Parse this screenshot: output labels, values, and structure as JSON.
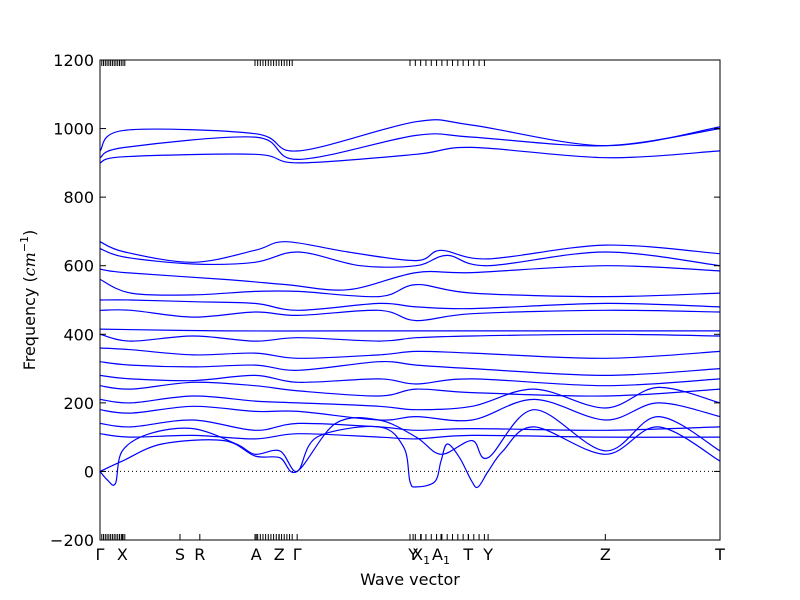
{
  "chart_data": {
    "type": "line",
    "xlabel": "Wave vector",
    "ylabel": "Frequency ($cm^{-1}$)",
    "ylabel_parts": {
      "prefix": "Frequency (",
      "unit_base": "cm",
      "unit_exp": "−1",
      "suffix": ")"
    },
    "ylim": [
      -200,
      1200
    ],
    "yticks": [
      -200,
      0,
      200,
      400,
      600,
      800,
      1000,
      1200
    ],
    "xlim": [
      0,
      1
    ],
    "grid": false,
    "legend": "none",
    "line_color": "#0000ff",
    "zero_line": {
      "y": 0,
      "style": "dotted",
      "color": "#000000"
    },
    "high_symmetry_points": [
      {
        "label": "Γ",
        "x": 0.0
      },
      {
        "label": "X",
        "x": 0.036
      },
      {
        "label": "S",
        "x": 0.129
      },
      {
        "label": "R",
        "x": 0.161
      },
      {
        "label": "A",
        "x": 0.252
      },
      {
        "label": "Z",
        "x": 0.289
      },
      {
        "label": "Γ",
        "x": 0.318
      },
      {
        "label": "Y",
        "x": 0.505
      },
      {
        "label": "X_1",
        "x": 0.518
      },
      {
        "label": "A_1",
        "x": 0.55
      },
      {
        "label": "T",
        "x": 0.594
      },
      {
        "label": "Y",
        "x": 0.626
      },
      {
        "label": "Z",
        "x": 0.815
      },
      {
        "label": "T",
        "x": 1.0
      }
    ],
    "series": [
      {
        "values": [
          {
            "x": 0,
            "y": 935
          },
          {
            "x": 0.04,
            "y": 995
          },
          {
            "x": 0.25,
            "y": 985
          },
          {
            "x": 0.32,
            "y": 935
          },
          {
            "x": 0.51,
            "y": 1020
          },
          {
            "x": 0.6,
            "y": 1010
          },
          {
            "x": 0.815,
            "y": 950
          },
          {
            "x": 1,
            "y": 1005
          }
        ]
      },
      {
        "values": [
          {
            "x": 0,
            "y": 915
          },
          {
            "x": 0.04,
            "y": 945
          },
          {
            "x": 0.25,
            "y": 975
          },
          {
            "x": 0.32,
            "y": 910
          },
          {
            "x": 0.51,
            "y": 980
          },
          {
            "x": 0.6,
            "y": 975
          },
          {
            "x": 0.815,
            "y": 950
          },
          {
            "x": 1,
            "y": 1000
          }
        ]
      },
      {
        "values": [
          {
            "x": 0,
            "y": 900
          },
          {
            "x": 0.04,
            "y": 918
          },
          {
            "x": 0.25,
            "y": 925
          },
          {
            "x": 0.32,
            "y": 900
          },
          {
            "x": 0.51,
            "y": 925
          },
          {
            "x": 0.6,
            "y": 945
          },
          {
            "x": 0.815,
            "y": 915
          },
          {
            "x": 1,
            "y": 935
          }
        ]
      },
      {
        "values": [
          {
            "x": 0,
            "y": 670
          },
          {
            "x": 0.04,
            "y": 640
          },
          {
            "x": 0.15,
            "y": 610
          },
          {
            "x": 0.25,
            "y": 645
          },
          {
            "x": 0.3,
            "y": 670
          },
          {
            "x": 0.4,
            "y": 640
          },
          {
            "x": 0.51,
            "y": 615
          },
          {
            "x": 0.55,
            "y": 645
          },
          {
            "x": 0.626,
            "y": 620
          },
          {
            "x": 0.815,
            "y": 660
          },
          {
            "x": 1,
            "y": 635
          }
        ]
      },
      {
        "values": [
          {
            "x": 0,
            "y": 650
          },
          {
            "x": 0.04,
            "y": 625
          },
          {
            "x": 0.15,
            "y": 605
          },
          {
            "x": 0.25,
            "y": 610
          },
          {
            "x": 0.32,
            "y": 640
          },
          {
            "x": 0.42,
            "y": 600
          },
          {
            "x": 0.51,
            "y": 600
          },
          {
            "x": 0.56,
            "y": 630
          },
          {
            "x": 0.626,
            "y": 600
          },
          {
            "x": 0.815,
            "y": 640
          },
          {
            "x": 1,
            "y": 600
          }
        ]
      },
      {
        "values": [
          {
            "x": 0,
            "y": 590
          },
          {
            "x": 0.04,
            "y": 580
          },
          {
            "x": 0.2,
            "y": 560
          },
          {
            "x": 0.3,
            "y": 545
          },
          {
            "x": 0.4,
            "y": 530
          },
          {
            "x": 0.51,
            "y": 580
          },
          {
            "x": 0.6,
            "y": 580
          },
          {
            "x": 0.815,
            "y": 600
          },
          {
            "x": 1,
            "y": 585
          }
        ]
      },
      {
        "values": [
          {
            "x": 0,
            "y": 560
          },
          {
            "x": 0.05,
            "y": 520
          },
          {
            "x": 0.15,
            "y": 515
          },
          {
            "x": 0.25,
            "y": 525
          },
          {
            "x": 0.32,
            "y": 525
          },
          {
            "x": 0.45,
            "y": 510
          },
          {
            "x": 0.51,
            "y": 545
          },
          {
            "x": 0.6,
            "y": 520
          },
          {
            "x": 0.815,
            "y": 510
          },
          {
            "x": 1,
            "y": 520
          }
        ]
      },
      {
        "values": [
          {
            "x": 0,
            "y": 500
          },
          {
            "x": 0.05,
            "y": 500
          },
          {
            "x": 0.15,
            "y": 495
          },
          {
            "x": 0.25,
            "y": 490
          },
          {
            "x": 0.32,
            "y": 470
          },
          {
            "x": 0.45,
            "y": 490
          },
          {
            "x": 0.51,
            "y": 480
          },
          {
            "x": 0.6,
            "y": 475
          },
          {
            "x": 0.815,
            "y": 490
          },
          {
            "x": 1,
            "y": 480
          }
        ]
      },
      {
        "values": [
          {
            "x": 0,
            "y": 470
          },
          {
            "x": 0.05,
            "y": 470
          },
          {
            "x": 0.15,
            "y": 450
          },
          {
            "x": 0.25,
            "y": 465
          },
          {
            "x": 0.32,
            "y": 455
          },
          {
            "x": 0.45,
            "y": 470
          },
          {
            "x": 0.51,
            "y": 440
          },
          {
            "x": 0.6,
            "y": 460
          },
          {
            "x": 0.815,
            "y": 470
          },
          {
            "x": 1,
            "y": 465
          }
        ]
      },
      {
        "values": [
          {
            "x": 0,
            "y": 415
          },
          {
            "x": 0.2,
            "y": 410
          },
          {
            "x": 0.4,
            "y": 410
          },
          {
            "x": 0.6,
            "y": 410
          },
          {
            "x": 0.815,
            "y": 410
          },
          {
            "x": 1,
            "y": 410
          }
        ]
      },
      {
        "values": [
          {
            "x": 0,
            "y": 400
          },
          {
            "x": 0.05,
            "y": 380
          },
          {
            "x": 0.15,
            "y": 395
          },
          {
            "x": 0.25,
            "y": 380
          },
          {
            "x": 0.32,
            "y": 390
          },
          {
            "x": 0.45,
            "y": 380
          },
          {
            "x": 0.51,
            "y": 390
          },
          {
            "x": 0.6,
            "y": 395
          },
          {
            "x": 0.815,
            "y": 400
          },
          {
            "x": 1,
            "y": 395
          }
        ]
      },
      {
        "values": [
          {
            "x": 0,
            "y": 360
          },
          {
            "x": 0.05,
            "y": 355
          },
          {
            "x": 0.15,
            "y": 340
          },
          {
            "x": 0.25,
            "y": 345
          },
          {
            "x": 0.32,
            "y": 330
          },
          {
            "x": 0.45,
            "y": 340
          },
          {
            "x": 0.51,
            "y": 350
          },
          {
            "x": 0.6,
            "y": 345
          },
          {
            "x": 0.815,
            "y": 330
          },
          {
            "x": 1,
            "y": 350
          }
        ]
      },
      {
        "values": [
          {
            "x": 0,
            "y": 320
          },
          {
            "x": 0.05,
            "y": 310
          },
          {
            "x": 0.15,
            "y": 305
          },
          {
            "x": 0.25,
            "y": 310
          },
          {
            "x": 0.32,
            "y": 295
          },
          {
            "x": 0.45,
            "y": 320
          },
          {
            "x": 0.51,
            "y": 310
          },
          {
            "x": 0.6,
            "y": 300
          },
          {
            "x": 0.815,
            "y": 280
          },
          {
            "x": 1,
            "y": 300
          }
        ]
      },
      {
        "values": [
          {
            "x": 0,
            "y": 280
          },
          {
            "x": 0.05,
            "y": 270
          },
          {
            "x": 0.15,
            "y": 265
          },
          {
            "x": 0.25,
            "y": 280
          },
          {
            "x": 0.32,
            "y": 260
          },
          {
            "x": 0.45,
            "y": 270
          },
          {
            "x": 0.51,
            "y": 255
          },
          {
            "x": 0.6,
            "y": 270
          },
          {
            "x": 0.815,
            "y": 250
          },
          {
            "x": 1,
            "y": 270
          }
        ]
      },
      {
        "values": [
          {
            "x": 0,
            "y": 250
          },
          {
            "x": 0.05,
            "y": 240
          },
          {
            "x": 0.15,
            "y": 260
          },
          {
            "x": 0.25,
            "y": 250
          },
          {
            "x": 0.32,
            "y": 235
          },
          {
            "x": 0.45,
            "y": 220
          },
          {
            "x": 0.51,
            "y": 240
          },
          {
            "x": 0.6,
            "y": 230
          },
          {
            "x": 0.815,
            "y": 220
          },
          {
            "x": 1,
            "y": 240
          }
        ]
      },
      {
        "values": [
          {
            "x": 0,
            "y": 210
          },
          {
            "x": 0.05,
            "y": 200
          },
          {
            "x": 0.15,
            "y": 220
          },
          {
            "x": 0.25,
            "y": 205
          },
          {
            "x": 0.32,
            "y": 200
          },
          {
            "x": 0.45,
            "y": 190
          },
          {
            "x": 0.51,
            "y": 180
          },
          {
            "x": 0.6,
            "y": 190
          },
          {
            "x": 0.7,
            "y": 240
          },
          {
            "x": 0.815,
            "y": 185
          },
          {
            "x": 0.9,
            "y": 245
          },
          {
            "x": 1,
            "y": 200
          }
        ]
      },
      {
        "values": [
          {
            "x": 0,
            "y": 180
          },
          {
            "x": 0.05,
            "y": 170
          },
          {
            "x": 0.15,
            "y": 190
          },
          {
            "x": 0.25,
            "y": 175
          },
          {
            "x": 0.32,
            "y": 175
          },
          {
            "x": 0.45,
            "y": 150
          },
          {
            "x": 0.51,
            "y": 160
          },
          {
            "x": 0.6,
            "y": 150
          },
          {
            "x": 0.7,
            "y": 210
          },
          {
            "x": 0.815,
            "y": 150
          },
          {
            "x": 0.9,
            "y": 200
          },
          {
            "x": 1,
            "y": 160
          }
        ]
      },
      {
        "values": [
          {
            "x": 0,
            "y": 140
          },
          {
            "x": 0.05,
            "y": 130
          },
          {
            "x": 0.15,
            "y": 150
          },
          {
            "x": 0.25,
            "y": 120
          },
          {
            "x": 0.32,
            "y": 140
          },
          {
            "x": 0.45,
            "y": 130
          },
          {
            "x": 0.51,
            "y": 120
          },
          {
            "x": 0.6,
            "y": 125
          },
          {
            "x": 0.815,
            "y": 120
          },
          {
            "x": 1,
            "y": 130
          }
        ]
      },
      {
        "values": [
          {
            "x": 0,
            "y": 110
          },
          {
            "x": 0.05,
            "y": 100
          },
          {
            "x": 0.15,
            "y": 105
          },
          {
            "x": 0.25,
            "y": 95
          },
          {
            "x": 0.32,
            "y": 110
          },
          {
            "x": 0.45,
            "y": 100
          },
          {
            "x": 0.51,
            "y": 95
          },
          {
            "x": 0.6,
            "y": 105
          },
          {
            "x": 0.815,
            "y": 100
          },
          {
            "x": 1,
            "y": 100
          }
        ]
      },
      {
        "values": [
          {
            "x": 0,
            "y": 0
          },
          {
            "x": 0.012,
            "y": -25
          },
          {
            "x": 0.025,
            "y": -35
          },
          {
            "x": 0.036,
            "y": 60
          },
          {
            "x": 0.08,
            "y": 110
          },
          {
            "x": 0.15,
            "y": 125
          },
          {
            "x": 0.22,
            "y": 80
          },
          {
            "x": 0.25,
            "y": 50
          },
          {
            "x": 0.29,
            "y": 60
          },
          {
            "x": 0.318,
            "y": 0
          },
          {
            "x": 0.35,
            "y": 100
          },
          {
            "x": 0.45,
            "y": 130
          },
          {
            "x": 0.49,
            "y": 70
          },
          {
            "x": 0.5,
            "y": -30
          },
          {
            "x": 0.51,
            "y": -45
          },
          {
            "x": 0.54,
            "y": -30
          },
          {
            "x": 0.55,
            "y": 30
          },
          {
            "x": 0.56,
            "y": 80
          },
          {
            "x": 0.58,
            "y": 40
          },
          {
            "x": 0.6,
            "y": -30
          },
          {
            "x": 0.61,
            "y": -45
          },
          {
            "x": 0.626,
            "y": 0
          },
          {
            "x": 0.65,
            "y": 60
          },
          {
            "x": 0.7,
            "y": 130
          },
          {
            "x": 0.815,
            "y": 50
          },
          {
            "x": 0.9,
            "y": 130
          },
          {
            "x": 1,
            "y": 30
          }
        ]
      },
      {
        "values": [
          {
            "x": 0,
            "y": 0
          },
          {
            "x": 0.036,
            "y": 30
          },
          {
            "x": 0.1,
            "y": 80
          },
          {
            "x": 0.2,
            "y": 90
          },
          {
            "x": 0.25,
            "y": 45
          },
          {
            "x": 0.29,
            "y": 40
          },
          {
            "x": 0.318,
            "y": 0
          },
          {
            "x": 0.38,
            "y": 140
          },
          {
            "x": 0.45,
            "y": 150
          },
          {
            "x": 0.51,
            "y": 100
          },
          {
            "x": 0.55,
            "y": 50
          },
          {
            "x": 0.6,
            "y": 90
          },
          {
            "x": 0.626,
            "y": 40
          },
          {
            "x": 0.7,
            "y": 180
          },
          {
            "x": 0.815,
            "y": 60
          },
          {
            "x": 0.9,
            "y": 160
          },
          {
            "x": 1,
            "y": 60
          }
        ]
      }
    ]
  }
}
